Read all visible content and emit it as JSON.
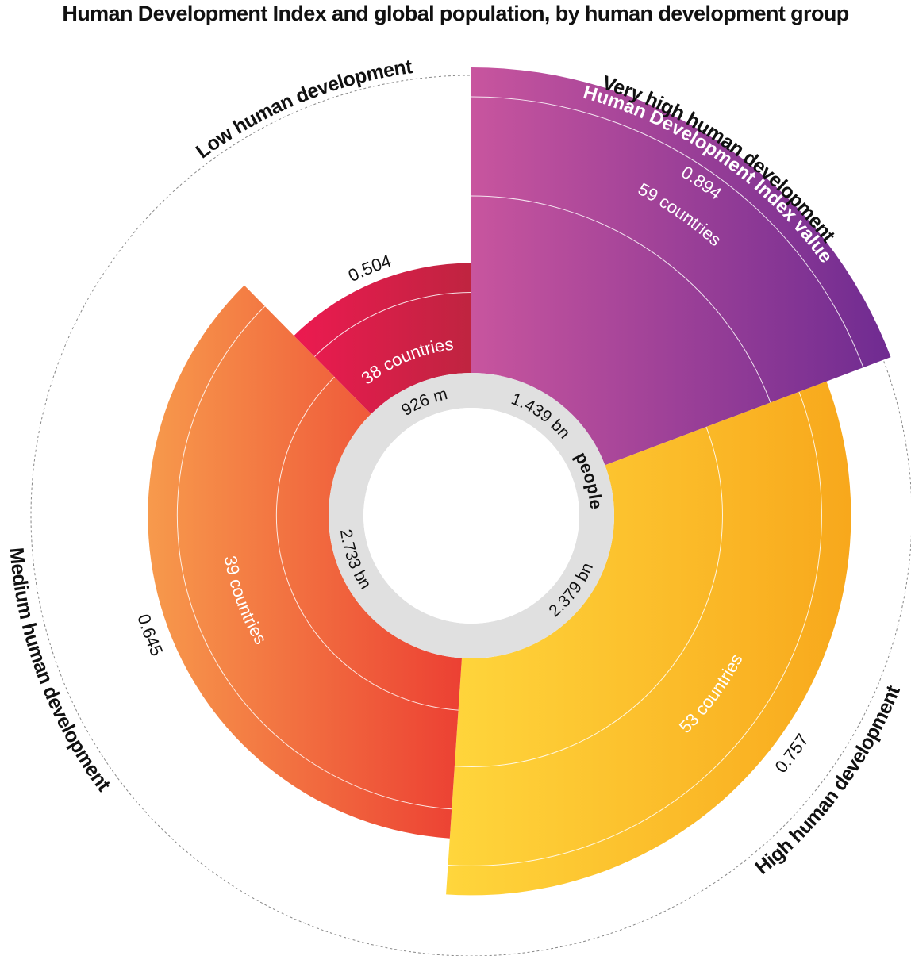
{
  "chart_data": {
    "type": "polar-area",
    "title": "Human Development Index and global population, by human development group",
    "value_label": "Human Development Index value",
    "population_label": "people",
    "groups": [
      {
        "name": "Very high human development",
        "hdi": 0.894,
        "hdi_label": "0.894",
        "countries": 59,
        "countries_label": "59 countries",
        "population_bn": 1.439,
        "population_label": "1.439 bn",
        "color_start": "#c8559e",
        "color_end": "#6f2b91"
      },
      {
        "name": "High human development",
        "hdi": 0.757,
        "hdi_label": "0.757",
        "countries": 53,
        "countries_label": "53 countries",
        "population_bn": 2.379,
        "population_label": "2.379 bn",
        "color_start": "#ffd63c",
        "color_end": "#f8a81c"
      },
      {
        "name": "Medium human development",
        "hdi": 0.645,
        "hdi_label": "0.645",
        "countries": 39,
        "countries_label": "39 countries",
        "population_bn": 2.733,
        "population_label": "2.733 bn",
        "color_start": "#f79a4c",
        "color_end": "#ec4033"
      },
      {
        "name": "Low human development",
        "hdi": 0.504,
        "hdi_label": "0.504",
        "countries": 38,
        "countries_label": "38 countries",
        "population_bn": 0.926,
        "population_label": "926 m",
        "color_start": "#ec1a50",
        "color_end": "#bf2440"
      }
    ],
    "colors": {
      "ring": "#e0e0e0",
      "outline": "#888888"
    }
  }
}
